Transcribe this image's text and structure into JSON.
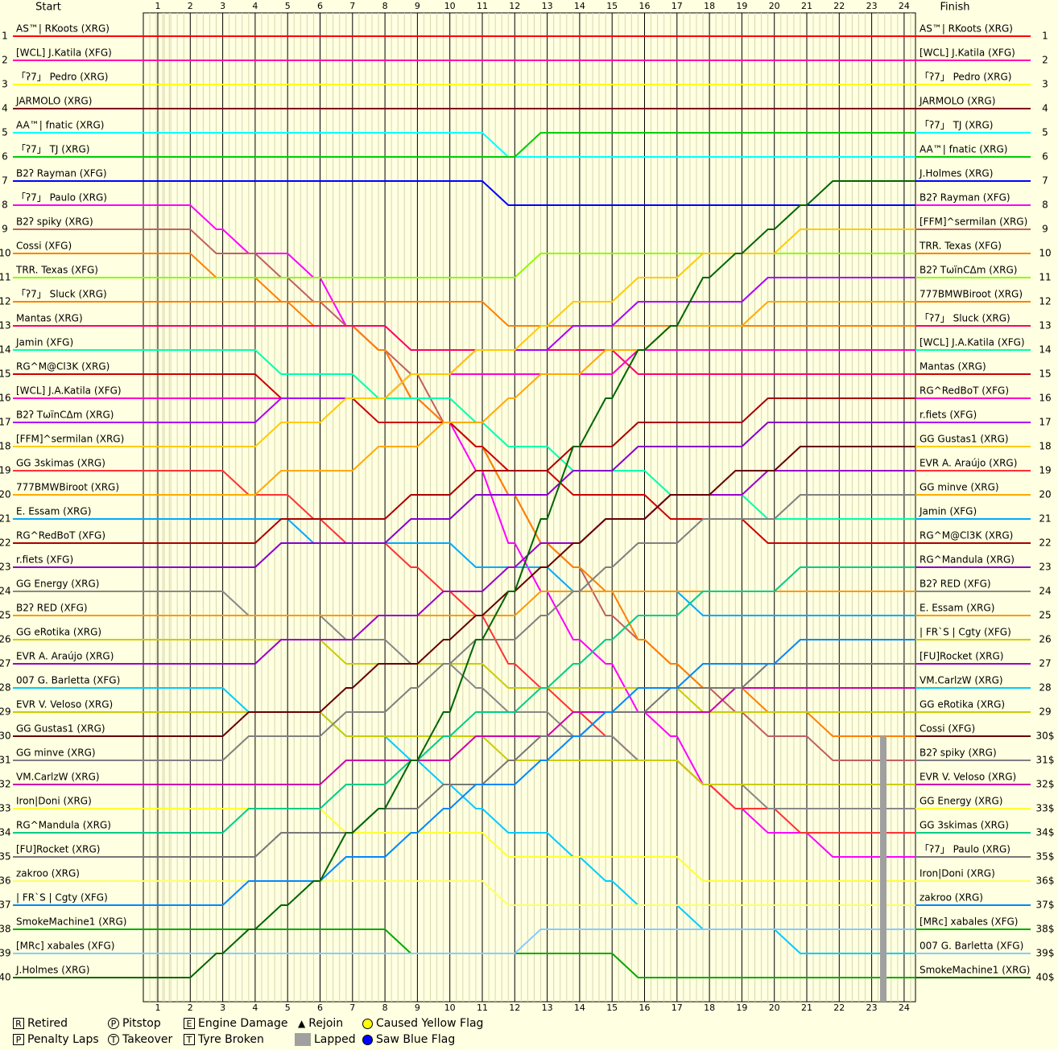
{
  "header": {
    "start_label": "Start",
    "finish_label": "Finish"
  },
  "colors": {
    "background": "#ffffe1",
    "grid": "#d8d8b0",
    "lap_line": "#000000",
    "yellow_flag": "#ffff00",
    "blue_flag": "#0000ff",
    "lapped": "#a0a0a0"
  },
  "chart_data": {
    "type": "line",
    "title": "",
    "laps": [
      1,
      2,
      3,
      4,
      5,
      6,
      7,
      8,
      9,
      10,
      11,
      12,
      13,
      14,
      15,
      16,
      17,
      18,
      19,
      20,
      21,
      22,
      23,
      24
    ],
    "positions": [
      1,
      2,
      3,
      4,
      5,
      6,
      7,
      8,
      9,
      10,
      11,
      12,
      13,
      14,
      15,
      16,
      17,
      18,
      19,
      20,
      21,
      22,
      23,
      24,
      25,
      26,
      27,
      28,
      29,
      30,
      31,
      32,
      33,
      34,
      35,
      36,
      37,
      38,
      39,
      40
    ],
    "start_grid": [
      "AS™| RKoots (XRG)",
      "[WCL] J.Katila (XFG)",
      "「ʔ7」 Pedro (XRG)",
      "JARMOLO (XRG)",
      "AA™| fnatic (XRG)",
      "「ʔ7」 TJ (XRG)",
      "B2ʔ Rayman (XFG)",
      "「ʔ7」 Paulo (XRG)",
      "B2ʔ spiky (XRG)",
      "Cossi (XFG)",
      "TRR. Texas (XFG)",
      "「ʔ7」 Sluck (XRG)",
      "Mantas (XRG)",
      "Jamin (XFG)",
      "RG^M@Cl3K (XRG)",
      "[WCL] J.A.Katila (XFG)",
      "B2ʔ TωïnCΔm (XRG)",
      "[FFM]^sermilan (XRG)",
      "GG 3skimas (XRG)",
      "777BMWBiroot (XRG)",
      "E. Essam (XRG)",
      "RG^RedBoT (XFG)",
      "r.fiets (XFG)",
      "GG Energy (XRG)",
      "B2ʔ RED (XFG)",
      "GG eRotika (XRG)",
      "EVR A. Araújo (XRG)",
      "007 G. Barletta (XFG)",
      "EVR V. Veloso (XRG)",
      "GG Gustas1 (XRG)",
      "GG minve (XRG)",
      "VM.CarlzW (XRG)",
      "Iron|Doni (XRG)",
      "RG^Mandula (XRG)",
      "[FU]Rocket (XRG)",
      "zakroo (XRG)",
      "| FR`S | Cgty (XFG)",
      "SmokeMachine1 (XRG)",
      "[MRc] xabales (XFG)",
      "J.Holmes (XRG)"
    ],
    "finish_order": [
      "AS™| RKoots (XRG)",
      "[WCL] J.Katila (XFG)",
      "「ʔ7」 Pedro (XRG)",
      "JARMOLO (XRG)",
      "「ʔ7」 TJ (XRG)",
      "AA™| fnatic (XRG)",
      "J.Holmes (XRG)",
      "B2ʔ Rayman (XFG)",
      "[FFM]^sermilan (XRG)",
      "TRR. Texas (XFG)",
      "B2ʔ TωïnCΔm (XRG)",
      "777BMWBiroot (XRG)",
      "「ʔ7」 Sluck (XRG)",
      "[WCL] J.A.Katila (XFG)",
      "Mantas (XRG)",
      "RG^RedBoT (XFG)",
      "r.fiets (XFG)",
      "GG Gustas1 (XRG)",
      "EVR A. Araújo (XRG)",
      "GG minve (XRG)",
      "Jamin (XFG)",
      "RG^M@Cl3K (XRG)",
      "RG^Mandula (XRG)",
      "B2ʔ RED (XFG)",
      "E. Essam (XRG)",
      "| FR`S | Cgty (XFG)",
      "[FU]Rocket (XRG)",
      "VM.CarlzW (XRG)",
      "GG eRotika (XRG)",
      "Cossi (XFG)",
      "B2ʔ spiky (XRG)",
      "EVR V. Veloso (XRG)",
      "GG Energy (XRG)",
      "GG 3skimas (XRG)",
      "「ʔ7」 Paulo (XRG)",
      "Iron|Doni (XRG)",
      "zakroo (XRG)",
      "[MRc] xabales (XFG)",
      "007 G. Barletta (XFG)",
      "SmokeMachine1 (XRG)"
    ],
    "finish_position_labels": [
      "1",
      "2",
      "3",
      "4",
      "5",
      "6",
      "7",
      "8",
      "9",
      "10",
      "11",
      "12",
      "13",
      "14",
      "15",
      "16",
      "17",
      "18",
      "19",
      "20",
      "21",
      "22",
      "23",
      "24",
      "25",
      "26",
      "27",
      "28",
      "29",
      "30$",
      "31$",
      "32$",
      "33$",
      "34$",
      "35$",
      "36$",
      "37$",
      "38$",
      "39$",
      "40$"
    ],
    "series_colors": [
      "#ff0000",
      "#ff00aa",
      "#ffff00",
      "#800000",
      "#00ffff",
      "#00cc00",
      "#0000ff",
      "#ff00ff",
      "#c06060",
      "#ff8000",
      "#88ff00",
      "#ff8000",
      "#ff0066",
      "#00ffaa",
      "#cc0000",
      "#ff00cc",
      "#aa00ff",
      "#ffcc00",
      "#ff3333",
      "#ffaa00",
      "#00aaff",
      "#aa0000",
      "#8800cc",
      "#888888",
      "#ff9900",
      "#cccc00",
      "#9900cc",
      "#00ccff",
      "#cccc00",
      "#660000",
      "#808080",
      "#cc00aa",
      "#ffff33",
      "#00cc88",
      "#777777",
      "#ffff66",
      "#0088ff",
      "#00aa00",
      "#88ccff",
      "#006600"
    ],
    "legend": [
      {
        "symbol": "R",
        "label": "Retired",
        "shape": "square"
      },
      {
        "symbol": "P",
        "label": "Penalty Laps",
        "shape": "square"
      },
      {
        "symbol": "P",
        "label": "Pitstop",
        "shape": "circle"
      },
      {
        "symbol": "T",
        "label": "Takeover",
        "shape": "circle"
      },
      {
        "symbol": "E",
        "label": "Engine Damage",
        "shape": "house"
      },
      {
        "symbol": "T",
        "label": "Tyre Broken",
        "shape": "house"
      },
      {
        "symbol": "▲",
        "label": "Rejoin",
        "shape": "triangle"
      },
      {
        "symbol": "",
        "label": "Lapped",
        "shape": "bar"
      },
      {
        "symbol": "●",
        "label": "Caused Yellow Flag",
        "shape": "yellow-dot"
      },
      {
        "symbol": "●",
        "label": "Saw Blue Flag",
        "shape": "blue-dot"
      }
    ],
    "grid": true
  }
}
